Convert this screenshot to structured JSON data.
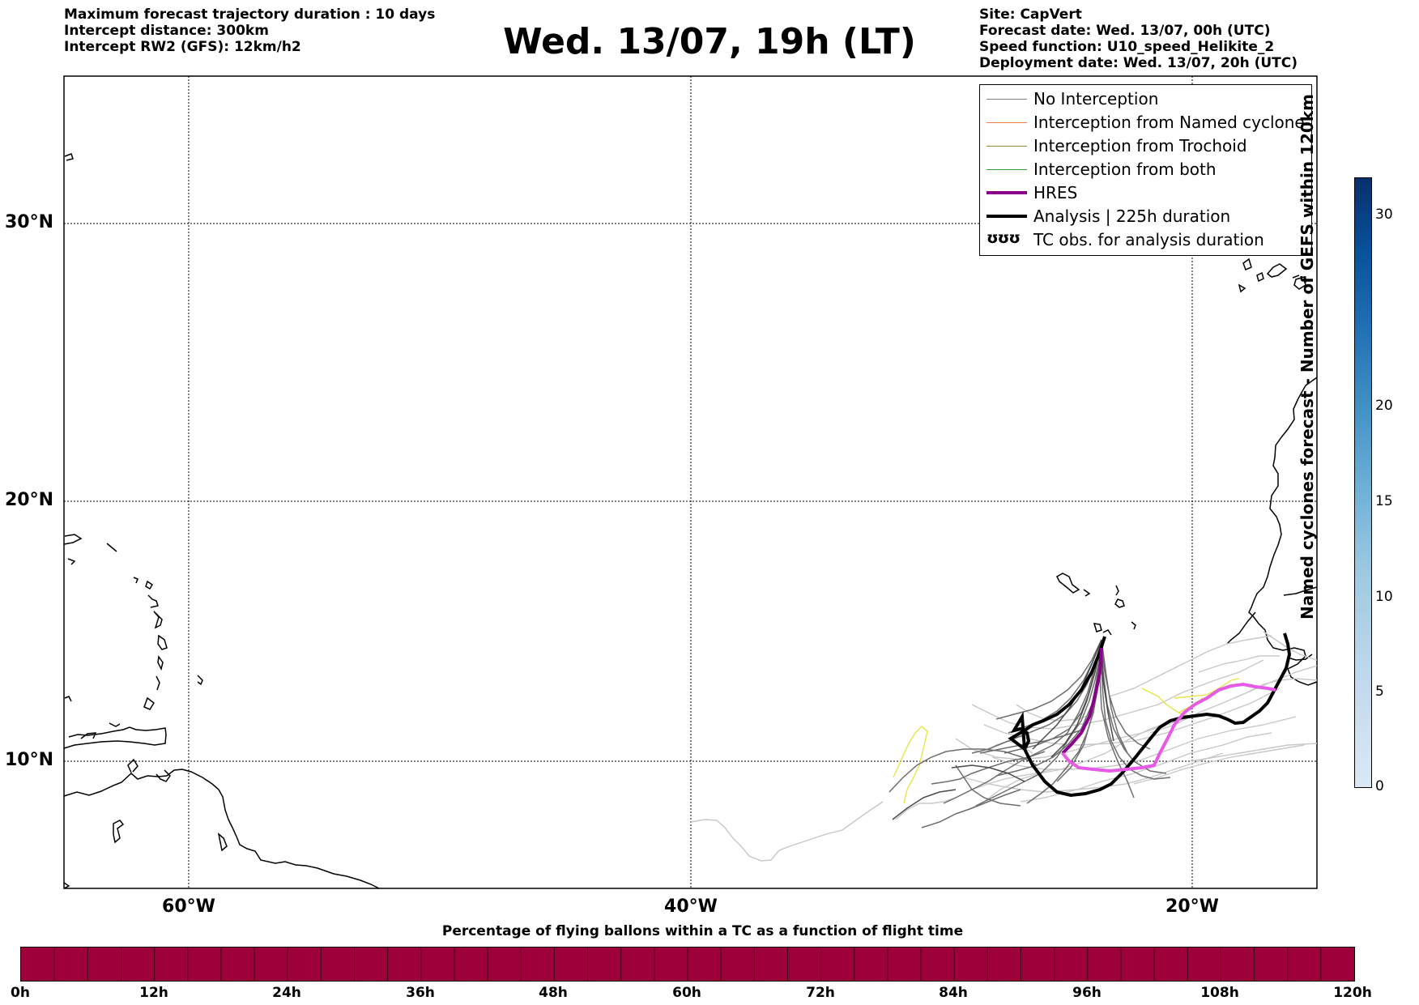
{
  "header_left": [
    "Maximum forecast trajectory duration : 10 days",
    "Intercept distance: 300km",
    "Intercept RW2 (GFS):  12km/h2"
  ],
  "title": "Wed. 13/07, 19h (LT)",
  "header_right": [
    "Site: CapVert",
    "Forecast date: Wed. 13/07, 00h (UTC)",
    "Speed function: U10_speed_Helikite_2",
    "Deployment date: Wed. 13/07, 20h (UTC)"
  ],
  "map": {
    "lat_labels": [
      "30°N",
      "20°N",
      "10°N"
    ],
    "lon_labels": [
      "60°W",
      "40°W",
      "20°W"
    ],
    "gridlines": true
  },
  "legend": [
    {
      "label": "No Interception",
      "color": "#808080"
    },
    {
      "label": "Interception from Named cyclone",
      "color": "#f47b4a"
    },
    {
      "label": "Interception from Trochoid",
      "color": "#8b8a3c"
    },
    {
      "label": "Interception from both",
      "color": "#3a9a3a"
    },
    {
      "label": "HRES",
      "color": "#8b008b"
    },
    {
      "label": "Analysis | 225h duration",
      "color": "#000000"
    },
    {
      "label": "TC obs. for analysis duration",
      "glyph": "ʊʊʊ"
    }
  ],
  "colorbar_vertical": {
    "label": "Named cyclones forecast - Number of GEFS within 120km",
    "ticks": [
      "30",
      "20",
      "15",
      "10",
      "5",
      "0"
    ]
  },
  "colorbar_horizontal": {
    "title": "Percentage of flying ballons within a TC as a function of flight time",
    "ticks": [
      "0h",
      "12h",
      "24h",
      "36h",
      "48h",
      "60h",
      "72h",
      "84h",
      "96h",
      "108h",
      "120h"
    ],
    "color": "#9e003a"
  }
}
